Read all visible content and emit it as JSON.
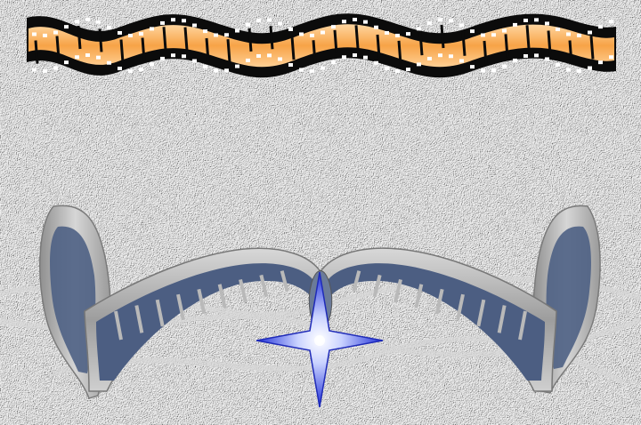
{
  "slide": {
    "background": "textured-white-paper",
    "colors": {
      "paper": "#f0f0f0",
      "film_orange": "#f6a24a",
      "film_orange_light": "#ffe3b8",
      "film_black": "#0a0a0a",
      "film_silver": "#b4b4b4",
      "film_frame_blue": "#4f6285",
      "star_blue": "#2b3fe0"
    },
    "decorations": [
      {
        "name": "top-film-strip",
        "icon": "wavy-orange-film-strip-icon"
      },
      {
        "name": "curved-silver-film-reel",
        "icon": "silver-film-strip-icon"
      },
      {
        "name": "sparkle-star",
        "icon": "four-point-star-icon"
      }
    ]
  }
}
